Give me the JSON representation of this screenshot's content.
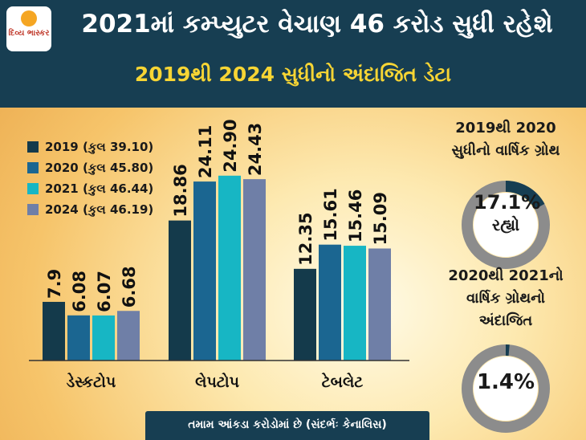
{
  "header": {
    "title": "2021માં કમ્પ્યુટર વેચાણ 46 કરોડ સુધી રહેશે",
    "subtitle": "2019થી 2024 સુધીનો અંદાજિત ડેટા",
    "logo_text": "દિવ્ય ભાસ્કર"
  },
  "chart_data": {
    "type": "bar",
    "title": "2021માં કમ્પ્યુટર વેચાણ 46 કરોડ સુધી રહેશે",
    "subtitle": "2019થી 2024 સુધીનો અંદાજિત ડેટા",
    "categories": [
      "ડેસ્કટોપ",
      "લેપટોપ",
      "ટેબલેટ"
    ],
    "series": [
      {
        "name": "2019 (કુલ 39.10)",
        "values": [
          7.9,
          18.86,
          12.35
        ],
        "labels": [
          "7.9",
          "18.86",
          "12.35"
        ],
        "color": "#143a4b"
      },
      {
        "name": "2020 (કુલ 45.80)",
        "values": [
          6.08,
          24.11,
          15.61
        ],
        "labels": [
          "6.08",
          "24.11",
          "15.61"
        ],
        "color": "#1b6691"
      },
      {
        "name": "2021 (કુલ 46.44)",
        "values": [
          6.07,
          24.9,
          15.46
        ],
        "labels": [
          "6.07",
          "24.90",
          "15.46"
        ],
        "color": "#17b6c4"
      },
      {
        "name": "2024 (કુલ 46.19)",
        "values": [
          6.68,
          24.43,
          15.09
        ],
        "labels": [
          "6.68",
          "24.43",
          "15.09"
        ],
        "color": "#6f7fa7"
      }
    ],
    "ylim": [
      0,
      26.5
    ],
    "grid": false,
    "legend_position": "top-left",
    "xlabel": "",
    "ylabel": ""
  },
  "growth": [
    {
      "title_line1": "2019થી 2020",
      "title_line2": "સુધીનો વાર્ષિક ગ્રોથ",
      "value": "17.1%",
      "suffix": "રહ્યો",
      "percent": 17.1
    },
    {
      "title_line1": "2020થી 2021નો",
      "title_line2": "વાર્ષિક ગ્રોથનો",
      "title_line3": "અંદાજિત",
      "value": "1.4%",
      "percent": 1.4
    }
  ],
  "colors": {
    "header_bg": "#173e52",
    "subtitle": "#f7d534",
    "ring_track": "#8c8c8c",
    "ring_fill": "#173e52"
  },
  "footer": {
    "note": "તમામ આંકડા કરોડોમાં છે (સંદર્ભઃ કેનાલિસ)"
  }
}
